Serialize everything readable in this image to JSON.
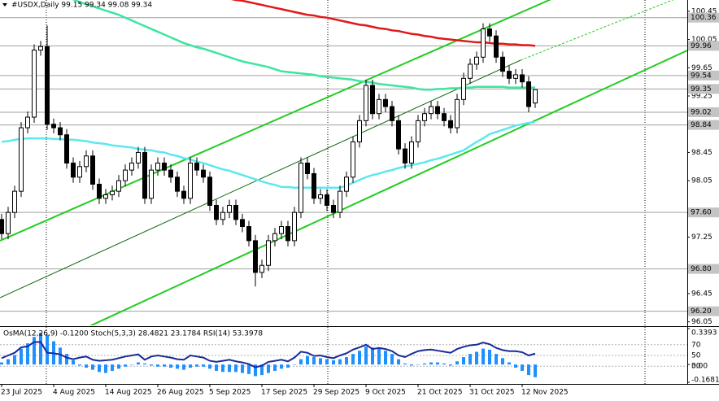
{
  "chart_data": {
    "type": "candlestick",
    "title": "#USDX,Daily 99.15 99.34 99.08 99.34",
    "up_color": "#ffffff",
    "down_color": "#000000",
    "categories": [
      "23 Jul 2025",
      null,
      null,
      null,
      null,
      null,
      null,
      null,
      "4 Aug 2025",
      null,
      null,
      null,
      null,
      null,
      null,
      null,
      "14 Aug 2025",
      null,
      null,
      null,
      null,
      null,
      null,
      null,
      "26 Aug 2025",
      null,
      null,
      null,
      null,
      null,
      null,
      null,
      "5 Sep 2025",
      null,
      null,
      null,
      null,
      null,
      null,
      null,
      "17 Sep 2025",
      null,
      null,
      null,
      null,
      null,
      null,
      null,
      "29 Sep 2025",
      null,
      null,
      null,
      null,
      null,
      null,
      null,
      "9 Oct 2025",
      null,
      null,
      null,
      null,
      null,
      null,
      null,
      "21 Oct 2025",
      null,
      null,
      null,
      null,
      null,
      null,
      null,
      "31 Oct 2025",
      null,
      null,
      null,
      null,
      null,
      null,
      null,
      "12 Nov 2025",
      null,
      null
    ],
    "open": [
      97.5,
      97.3,
      97.6,
      97.9,
      98.8,
      98.95,
      99.9,
      99.95,
      98.85,
      98.8,
      98.7,
      98.3,
      98.1,
      98.25,
      98.4,
      98.0,
      97.8,
      97.85,
      97.9,
      98.05,
      98.2,
      98.3,
      98.45,
      97.8,
      98.2,
      98.3,
      98.2,
      98.1,
      97.9,
      97.8,
      98.3,
      98.2,
      98.1,
      97.7,
      97.5,
      97.6,
      97.7,
      97.5,
      97.4,
      97.2,
      96.75,
      96.85,
      97.2,
      97.3,
      97.4,
      97.2,
      97.6,
      98.3,
      98.15,
      97.8,
      97.85,
      97.7,
      97.6,
      97.9,
      98.1,
      98.6,
      98.9,
      99.4,
      99.0,
      99.2,
      99.1,
      98.9,
      98.5,
      98.3,
      98.6,
      98.9,
      99.0,
      99.1,
      99.0,
      98.9,
      98.8,
      99.2,
      99.5,
      99.7,
      99.8,
      100.2,
      100.1,
      99.8,
      99.6,
      99.5,
      99.55,
      99.45,
      99.15
    ],
    "high": [
      97.58,
      97.68,
      97.98,
      98.88,
      99.03,
      99.98,
      100.03,
      100.25,
      98.93,
      98.88,
      98.78,
      98.38,
      98.33,
      98.48,
      98.48,
      98.08,
      97.93,
      97.98,
      98.13,
      98.28,
      98.38,
      98.53,
      98.53,
      98.28,
      98.38,
      98.38,
      98.28,
      98.18,
      97.98,
      98.38,
      98.38,
      98.28,
      98.18,
      97.78,
      97.68,
      97.78,
      97.78,
      97.58,
      97.48,
      97.28,
      96.93,
      97.28,
      97.38,
      97.48,
      97.48,
      97.68,
      98.38,
      98.38,
      98.23,
      97.93,
      97.93,
      97.78,
      97.98,
      98.18,
      98.68,
      98.98,
      99.48,
      99.48,
      99.28,
      99.28,
      99.18,
      98.98,
      98.58,
      98.68,
      98.98,
      99.08,
      99.18,
      99.18,
      99.08,
      98.98,
      99.28,
      99.58,
      99.78,
      99.88,
      100.28,
      100.28,
      100.18,
      99.88,
      99.68,
      99.63,
      99.63,
      99.53,
      99.34
    ],
    "low": [
      97.22,
      97.22,
      97.52,
      97.82,
      98.72,
      98.87,
      99.82,
      98.77,
      98.72,
      98.62,
      98.22,
      98.02,
      98.02,
      98.17,
      97.92,
      97.72,
      97.72,
      97.77,
      97.82,
      97.97,
      98.12,
      98.22,
      97.72,
      97.72,
      98.12,
      98.12,
      98.02,
      97.82,
      97.72,
      97.72,
      98.12,
      98.02,
      97.62,
      97.42,
      97.42,
      97.52,
      97.42,
      97.32,
      97.12,
      96.55,
      96.67,
      96.77,
      97.12,
      97.22,
      97.12,
      97.12,
      97.52,
      98.07,
      97.72,
      97.72,
      97.62,
      97.52,
      97.52,
      97.82,
      98.02,
      98.52,
      98.82,
      98.92,
      98.92,
      99.02,
      98.82,
      98.42,
      98.22,
      98.22,
      98.52,
      98.82,
      98.92,
      98.92,
      98.82,
      98.72,
      98.72,
      99.12,
      99.42,
      99.62,
      99.72,
      100.02,
      99.72,
      99.52,
      99.42,
      99.42,
      99.37,
      99.02,
      99.08
    ],
    "close": [
      97.3,
      97.6,
      97.9,
      98.8,
      98.95,
      99.9,
      99.95,
      98.85,
      98.8,
      98.7,
      98.3,
      98.1,
      98.25,
      98.4,
      98.0,
      97.8,
      97.85,
      97.9,
      98.05,
      98.2,
      98.3,
      98.45,
      97.8,
      98.2,
      98.3,
      98.2,
      98.1,
      97.9,
      97.8,
      98.3,
      98.2,
      98.1,
      97.7,
      97.5,
      97.6,
      97.7,
      97.5,
      97.4,
      97.2,
      96.75,
      96.85,
      97.2,
      97.3,
      97.4,
      97.2,
      97.6,
      98.3,
      98.15,
      97.8,
      97.85,
      97.7,
      97.6,
      97.9,
      98.1,
      98.6,
      98.9,
      99.4,
      99.0,
      99.2,
      99.1,
      98.9,
      98.5,
      98.3,
      98.6,
      98.9,
      99.0,
      99.1,
      99.0,
      98.9,
      98.8,
      99.2,
      99.5,
      99.7,
      99.8,
      100.2,
      100.1,
      99.8,
      99.6,
      99.5,
      99.55,
      99.45,
      99.1,
      99.34
    ],
    "ylim": [
      96.0,
      100.61
    ],
    "yticks": [
      {
        "value": 100.45,
        "label": "100.45"
      },
      {
        "value": 100.05,
        "label": "100.05"
      },
      99.65,
      99.25,
      98.45,
      98.05,
      97.25,
      96.45,
      96.05
    ],
    "levels": [
      100.36,
      99.96,
      99.54,
      99.35,
      99.02,
      98.84,
      {
        "value": 97.6,
        "label": "97.60"
      },
      {
        "value": 96.8,
        "label": "96.80"
      },
      {
        "value": 96.2,
        "label": "96.20"
      }
    ],
    "grid": false,
    "moving_averages": [
      {
        "color": "#3ce6a0",
        "values": [
          100.95,
          100.92,
          100.89,
          100.86,
          100.83,
          100.8,
          100.77,
          100.74,
          100.71,
          100.68,
          100.65,
          100.62,
          100.58,
          100.55,
          100.52,
          100.49,
          100.46,
          100.43,
          100.4,
          100.36,
          100.32,
          100.28,
          100.24,
          100.2,
          100.16,
          100.12,
          100.08,
          100.04,
          100.0,
          99.97,
          99.94,
          99.92,
          99.89,
          99.86,
          99.83,
          99.8,
          99.77,
          99.74,
          99.72,
          99.7,
          99.68,
          99.66,
          99.63,
          99.6,
          99.59,
          99.58,
          99.57,
          99.56,
          99.55,
          99.53,
          99.52,
          99.51,
          99.5,
          99.49,
          99.48,
          99.46,
          99.45,
          99.44,
          99.42,
          99.41,
          99.4,
          99.39,
          99.38,
          99.37,
          99.35,
          99.34,
          99.34,
          99.35,
          99.35,
          99.36,
          99.36,
          99.37,
          99.37,
          99.38,
          99.38,
          99.38,
          99.38,
          99.38,
          99.37,
          99.37,
          99.37,
          99.37,
          99.37
        ]
      },
      {
        "color": "#e01818",
        "values": [
          101.5,
          101.48,
          101.45,
          101.43,
          101.4,
          101.38,
          101.35,
          101.33,
          101.3,
          101.28,
          101.25,
          101.23,
          101.2,
          101.18,
          101.15,
          101.13,
          101.1,
          101.08,
          101.05,
          101.03,
          101.0,
          100.98,
          100.95,
          100.93,
          100.9,
          100.88,
          100.85,
          100.83,
          100.8,
          100.78,
          100.75,
          100.73,
          100.7,
          100.68,
          100.65,
          100.63,
          100.61,
          100.6,
          100.58,
          100.56,
          100.54,
          100.52,
          100.5,
          100.48,
          100.46,
          100.44,
          100.42,
          100.4,
          100.39,
          100.37,
          100.36,
          100.34,
          100.32,
          100.3,
          100.28,
          100.26,
          100.25,
          100.23,
          100.21,
          100.2,
          100.18,
          100.17,
          100.15,
          100.13,
          100.12,
          100.1,
          100.09,
          100.07,
          100.06,
          100.05,
          100.04,
          100.03,
          100.02,
          100.01,
          100.01,
          100.0,
          99.99,
          99.99,
          99.98,
          99.98,
          99.97,
          99.97,
          99.96
        ]
      },
      {
        "color": "#5ce8f0",
        "values": [
          98.6,
          98.61,
          98.63,
          98.64,
          98.65,
          98.65,
          98.65,
          98.65,
          98.64,
          98.64,
          98.63,
          98.63,
          98.62,
          98.61,
          98.59,
          98.58,
          98.57,
          98.55,
          98.54,
          98.53,
          98.52,
          98.5,
          98.49,
          98.48,
          98.46,
          98.45,
          98.42,
          98.4,
          98.37,
          98.35,
          98.32,
          98.3,
          98.27,
          98.24,
          98.21,
          98.19,
          98.16,
          98.13,
          98.1,
          98.07,
          98.04,
          98.01,
          97.99,
          97.96,
          97.96,
          97.95,
          97.95,
          97.95,
          97.95,
          97.95,
          97.95,
          97.95,
          97.95,
          97.98,
          98.02,
          98.06,
          98.1,
          98.13,
          98.15,
          98.18,
          98.2,
          98.23,
          98.25,
          98.27,
          98.29,
          98.31,
          98.34,
          98.36,
          98.39,
          98.42,
          98.45,
          98.48,
          98.54,
          98.6,
          98.65,
          98.71,
          98.74,
          98.77,
          98.8,
          98.83,
          98.85,
          98.87,
          98.88
        ]
      }
    ],
    "indicator": {
      "title": "OsMA(12,26,9) -0.1200 Stoch(5,3,3) 28.4821 23.1784 RSI(14) 53.3978",
      "ylim": [
        -0.1681,
        0.3393
      ],
      "yticks": [
        0.3393,
        {
          "value": 0,
          "label": "0.00"
        },
        -0.1681
      ],
      "rsi_ylim": [
        0,
        100
      ],
      "rsi_yticks": [
        70,
        50,
        30
      ],
      "osma": {
        "color": "#1e90ff",
        "values": [
          0.02,
          0.05,
          0.09,
          0.15,
          0.2,
          0.26,
          0.3,
          0.28,
          0.22,
          0.16,
          0.1,
          0.04,
          -0.01,
          -0.03,
          -0.05,
          -0.07,
          -0.08,
          -0.06,
          -0.04,
          -0.02,
          0.0,
          0.02,
          0.01,
          -0.01,
          -0.02,
          -0.02,
          -0.03,
          -0.04,
          -0.05,
          -0.03,
          -0.02,
          -0.02,
          -0.04,
          -0.06,
          -0.07,
          -0.07,
          -0.07,
          -0.08,
          -0.09,
          -0.11,
          -0.1,
          -0.08,
          -0.06,
          -0.04,
          -0.03,
          0.0,
          0.05,
          0.08,
          0.07,
          0.06,
          0.05,
          0.04,
          0.05,
          0.07,
          0.1,
          0.13,
          0.17,
          0.16,
          0.15,
          0.13,
          0.1,
          0.05,
          0.01,
          -0.01,
          0.0,
          0.01,
          0.02,
          0.02,
          0.01,
          -0.01,
          0.03,
          0.07,
          0.1,
          0.12,
          0.15,
          0.14,
          0.1,
          0.06,
          0.02,
          -0.03,
          -0.06,
          -0.1,
          -0.12
        ]
      },
      "rsi": {
        "color": "#1a2a9a",
        "values": [
          45,
          50,
          55,
          65,
          67,
          75,
          75,
          55,
          54,
          52,
          46,
          43,
          46,
          48,
          42,
          40,
          41,
          42,
          45,
          48,
          50,
          52,
          42,
          48,
          50,
          48,
          46,
          43,
          42,
          50,
          48,
          46,
          40,
          38,
          40,
          42,
          39,
          37,
          34,
          28,
          31,
          38,
          40,
          42,
          39,
          46,
          57,
          55,
          49,
          50,
          47,
          45,
          50,
          54,
          61,
          65,
          70,
          62,
          64,
          62,
          58,
          50,
          47,
          53,
          58,
          60,
          61,
          59,
          57,
          55,
          62,
          66,
          69,
          70,
          74,
          71,
          64,
          60,
          58,
          58,
          56,
          50,
          53.3978
        ]
      }
    }
  }
}
